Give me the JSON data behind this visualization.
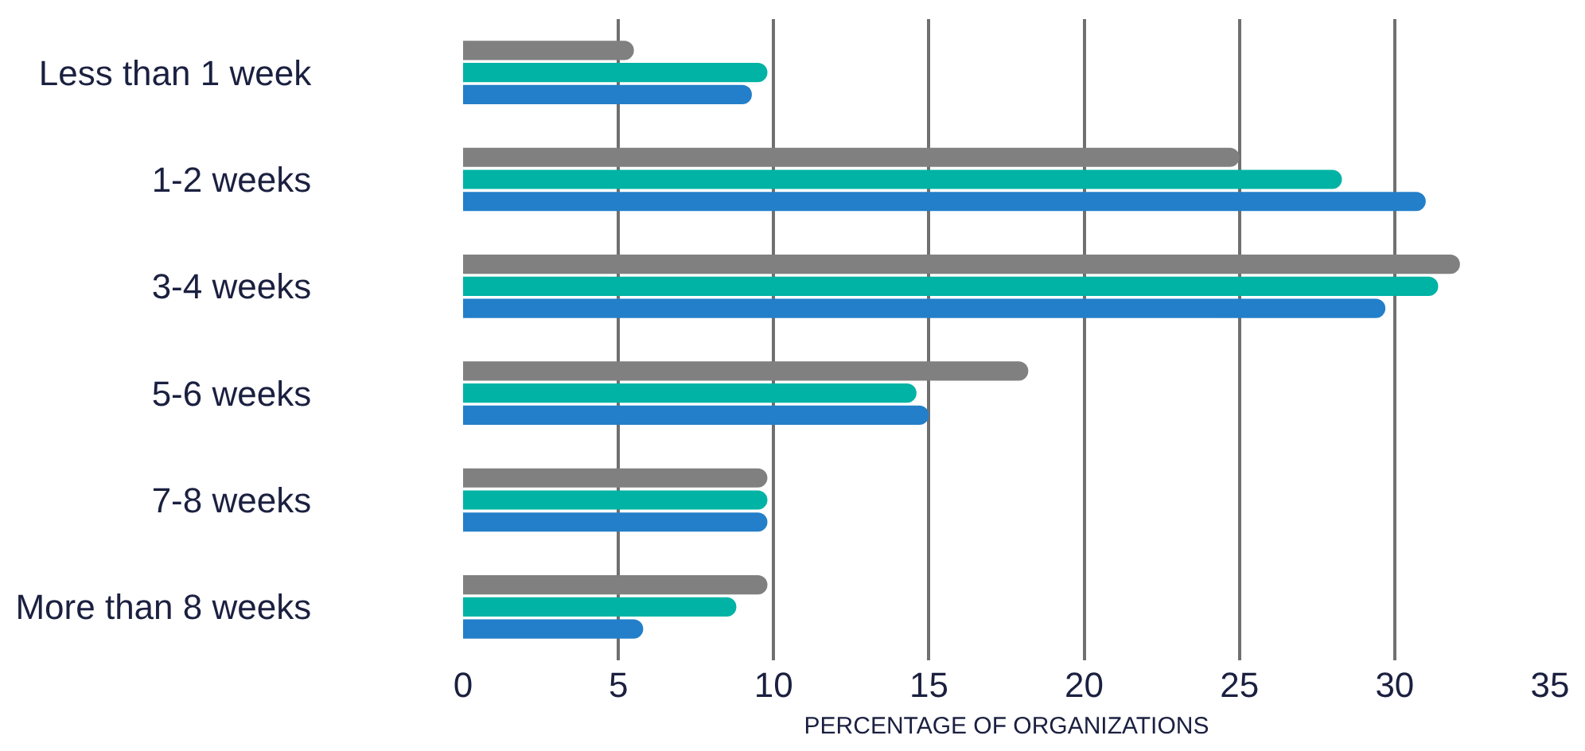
{
  "chart_data": {
    "type": "bar",
    "orientation": "horizontal",
    "xlabel": "PERCENTAGE OF ORGANIZATIONS",
    "categories": [
      "Less than 1 week",
      "1-2 weeks",
      "3-4 weeks",
      "5-6 weeks",
      "7-8 weeks",
      "More than 8 weeks"
    ],
    "series": [
      {
        "color": "#808080",
        "values": [
          5.5,
          25,
          32.1,
          18.2,
          9.8,
          9.8
        ]
      },
      {
        "color": "#00b3a4",
        "values": [
          9.8,
          28.3,
          31.4,
          14.6,
          9.8,
          8.8
        ]
      },
      {
        "color": "#237fc9",
        "values": [
          9.3,
          31.0,
          29.7,
          15.0,
          9.8,
          5.8
        ]
      }
    ],
    "xlim": [
      0,
      35
    ],
    "xticks": [
      0,
      5,
      10,
      15,
      20,
      25,
      30,
      35
    ],
    "grid": "x",
    "legend": false
  }
}
